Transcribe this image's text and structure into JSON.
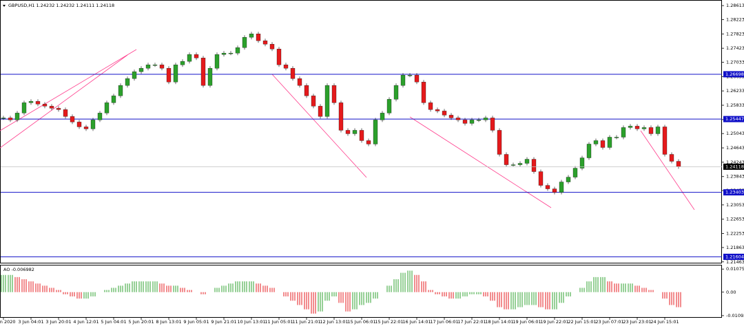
{
  "chart_data": {
    "type": "candlestick",
    "title": "GBPUSD,H1  1.24232 1.24232 1.24111 1.24118",
    "categories": [
      "2 Jun 2020",
      null,
      null,
      null,
      "3 Jun 04:01",
      null,
      null,
      null,
      "3 Jun 20:01",
      null,
      null,
      null,
      "4 Jun 12:01",
      null,
      null,
      null,
      "5 Jun 04:01",
      null,
      null,
      null,
      "5 Jun 20:01",
      null,
      null,
      null,
      "8 Jun 13:01",
      null,
      null,
      null,
      "9 Jun 05:01",
      null,
      null,
      null,
      "9 Jun 21:01",
      null,
      null,
      null,
      "10 Jun 13:01",
      null,
      null,
      null,
      "11 Jun 05:01",
      null,
      null,
      null,
      "11 Jun 21:01",
      null,
      null,
      null,
      "12 Jun 13:01",
      null,
      null,
      null,
      "15 Jun 06:01",
      null,
      null,
      null,
      "15 Jun 22:01",
      null,
      null,
      null,
      "16 Jun 14:01",
      null,
      null,
      null,
      "17 Jun 06:01",
      null,
      null,
      null,
      "17 Jun 22:01",
      null,
      null,
      null,
      "18 Jun 14:01",
      null,
      null,
      null,
      "19 Jun 06:01",
      null,
      null,
      null,
      "19 Jun 22:01",
      null,
      null,
      null,
      "22 Jun 15:01",
      null,
      null,
      null,
      "23 Jun 07:01",
      null,
      null,
      null,
      "23 Jun 23:01",
      null,
      null,
      null,
      "24 Jun 15:01",
      null,
      null
    ],
    "series": [
      {
        "name": "GBPUSD,H1",
        "up_color": "#2ca02c",
        "down_color": "#e41a1c",
        "values": [
          1.2548,
          1.25423,
          1.25615,
          1.25903,
          1.25941,
          1.25865,
          1.25807,
          1.25749,
          1.25711,
          1.25519,
          1.25365,
          1.2523,
          1.25173,
          1.25423,
          1.25615,
          1.25903,
          1.26095,
          1.26384,
          1.26576,
          1.26768,
          1.26864,
          1.2696,
          1.2696,
          1.26864,
          1.2648,
          1.2696,
          1.27056,
          1.27248,
          1.27152,
          1.26384,
          1.26864,
          1.27248,
          1.27287,
          1.27287,
          1.27441,
          1.27729,
          1.27825,
          1.27633,
          1.27537,
          1.27402,
          1.2696,
          1.26864,
          1.26576,
          1.26384,
          1.26095,
          1.25807,
          1.25519,
          1.26384,
          1.25903,
          1.25134,
          1.25038,
          1.25134,
          1.24846,
          1.2475,
          1.25423,
          1.25615,
          1.25999,
          1.26384,
          1.26672,
          1.26672,
          1.2648,
          1.25903,
          1.25711,
          1.25672,
          1.25557,
          1.2548,
          1.25423,
          1.25326,
          1.25423,
          1.25423,
          1.2548,
          1.25134,
          1.24462,
          1.24173,
          1.24173,
          1.24212,
          1.24327,
          1.23981,
          1.23597,
          1.23501,
          1.23404,
          1.23693,
          1.23827,
          1.24077,
          1.24365,
          1.2475,
          1.24846,
          1.24654,
          1.24942,
          1.24942,
          1.25211,
          1.2525,
          1.25173,
          1.25211,
          1.25038,
          1.2523,
          1.24462,
          1.24269,
          1.24118
        ]
      }
    ],
    "ylim": [
      1.2142,
      1.2875
    ],
    "yticks": [
      1.28613,
      1.28223,
      1.27823,
      1.27423,
      1.27033,
      1.26633,
      1.26233,
      1.25833,
      1.25433,
      1.25043,
      1.24643,
      1.24243,
      1.23843,
      1.23453,
      1.23053,
      1.22653,
      1.22253,
      1.21863,
      1.21463
    ],
    "levels": [
      1.26698,
      1.25447,
      1.23403,
      1.21604
    ],
    "level_color": "#1010c8",
    "indicator": {
      "type": "bar",
      "title": "AO -0.006982",
      "up_color": "#2ca02c",
      "down_color": "#e41a1c",
      "values": [
        0.008,
        0.008,
        0.007,
        0.006,
        0.005,
        0.004,
        0.003,
        0.002,
        0.001,
        -0.001,
        -0.002,
        -0.003,
        -0.003,
        -0.002,
        0,
        0.001,
        0.002,
        0.003,
        0.004,
        0.005,
        0.005,
        0.005,
        0.005,
        0.004,
        0.003,
        0.003,
        0.002,
        0.001,
        0,
        -0.001,
        0,
        0.002,
        0.003,
        0.004,
        0.005,
        0.005,
        0.005,
        0.004,
        0.003,
        0.002,
        0,
        -0.002,
        -0.004,
        -0.006,
        -0.008,
        -0.01,
        -0.009,
        -0.004,
        -0.002,
        -0.005,
        -0.009,
        -0.008,
        -0.006,
        -0.005,
        -0.003,
        0,
        0.003,
        0.006,
        0.009,
        0.01,
        0.008,
        0.005,
        0.001,
        -0.001,
        -0.002,
        -0.003,
        -0.003,
        -0.002,
        -0.001,
        -0.001,
        -0.002,
        -0.004,
        -0.007,
        -0.008,
        -0.008,
        -0.007,
        -0.006,
        -0.006,
        -0.007,
        -0.008,
        -0.008,
        -0.005,
        -0.002,
        0,
        0.002,
        0.005,
        0.007,
        0.007,
        0.005,
        0.004,
        0.004,
        0.004,
        0.003,
        0.002,
        0.001,
        0,
        -0.003,
        -0.006,
        -0.007
      ],
      "ylim": [
        -0.0116,
        0.0121
      ],
      "yticks": [
        0.010751,
        {
          "value": 0,
          "label": "0.00"
        },
        -0.010929
      ]
    }
  }
}
